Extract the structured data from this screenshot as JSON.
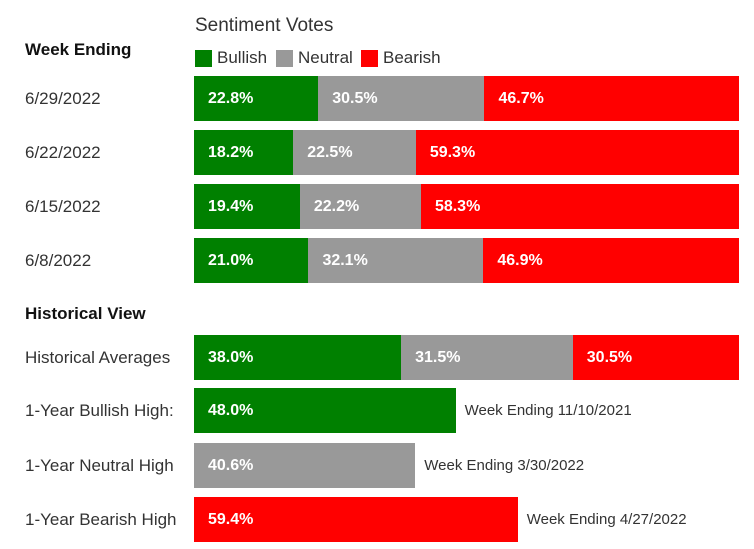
{
  "legend": {
    "title": "Sentiment Votes",
    "items": [
      {
        "label": "Bullish",
        "color": "#008000"
      },
      {
        "label": "Neutral",
        "color": "#999999"
      },
      {
        "label": "Bearish",
        "color": "#ff0000"
      }
    ]
  },
  "weekly_header": "Week Ending",
  "historical_header": "Historical View",
  "chart_data": {
    "type": "bar",
    "stacked": true,
    "orientation": "horizontal",
    "title": "Sentiment Votes",
    "series_names": [
      "Bullish",
      "Neutral",
      "Bearish"
    ],
    "colors": {
      "Bullish": "#008000",
      "Neutral": "#999999",
      "Bearish": "#ff0000"
    },
    "weekly": [
      {
        "label": "6/29/2022",
        "values": [
          22.8,
          30.5,
          46.7
        ],
        "texts": [
          "22.8%",
          "30.5%",
          "46.7%"
        ]
      },
      {
        "label": "6/22/2022",
        "values": [
          18.2,
          22.5,
          59.3
        ],
        "texts": [
          "18.2%",
          "22.5%",
          "59.3%"
        ]
      },
      {
        "label": "6/15/2022",
        "values": [
          19.4,
          22.2,
          58.3
        ],
        "texts": [
          "19.4%",
          "22.2%",
          "58.3%"
        ]
      },
      {
        "label": "6/8/2022",
        "values": [
          21.0,
          32.1,
          46.9
        ],
        "texts": [
          "21.0%",
          "32.1%",
          "46.9%"
        ]
      }
    ],
    "historical_averages": {
      "label": "Historical Averages",
      "values": [
        38.0,
        31.5,
        30.5
      ],
      "texts": [
        "38.0%",
        "31.5%",
        "30.5%"
      ]
    },
    "highs": [
      {
        "label": "1-Year Bullish High:",
        "series": "Bullish",
        "value": 48.0,
        "text": "48.0%",
        "note": "Week Ending 11/10/2021"
      },
      {
        "label": "1-Year Neutral High",
        "series": "Neutral",
        "value": 40.6,
        "text": "40.6%",
        "note": "Week Ending 3/30/2022"
      },
      {
        "label": "1-Year Bearish High",
        "series": "Bearish",
        "value": 59.4,
        "text": "59.4%",
        "note": "Week Ending 4/27/2022"
      }
    ]
  }
}
